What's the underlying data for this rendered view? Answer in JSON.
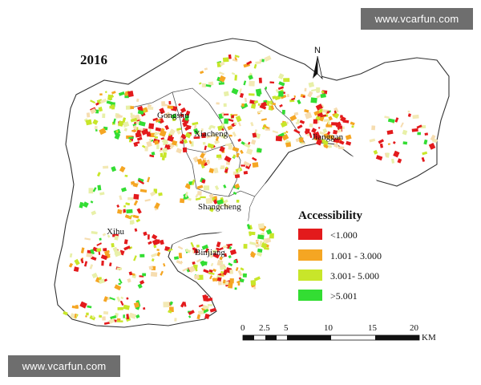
{
  "watermark": {
    "text": "www.vcarfun.com"
  },
  "map": {
    "year": "2016",
    "districts": [
      "Gongshu",
      "Xiacheng",
      "Jianggan",
      "Shangcheng",
      "Xihu",
      "Binjiang"
    ],
    "north": "N",
    "legend": {
      "title": "Accessibility",
      "items": [
        {
          "label": "<1.000",
          "color": "#e31a1c"
        },
        {
          "label": "1.001 - 3.000",
          "color": "#f5a623"
        },
        {
          "label": "3.001- 5.000",
          "color": "#c8e62a"
        },
        {
          "label": ">5.001",
          "color": "#33dd33"
        }
      ]
    },
    "scale": {
      "ticks": [
        "0",
        "2.5",
        "5",
        "10",
        "15",
        "20"
      ],
      "unit": "KM"
    }
  }
}
